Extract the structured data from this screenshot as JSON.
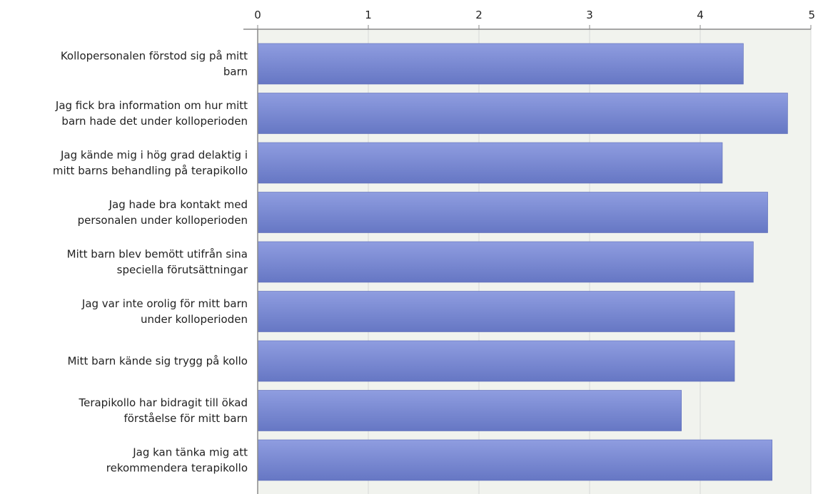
{
  "chart_data": {
    "type": "bar",
    "orientation": "horizontal",
    "title": "",
    "xlabel": "",
    "ylabel": "",
    "xlim": [
      0,
      5
    ],
    "ticks": [
      "0",
      "1",
      "2",
      "3",
      "4",
      "5"
    ],
    "tick_values": [
      0,
      1,
      2,
      3,
      4,
      5
    ],
    "grid": true,
    "legend": "none",
    "categories": [
      [
        "Kollopersonalen förstod sig på mitt",
        "barn"
      ],
      [
        "Jag fick bra information om hur mitt",
        "barn hade det under kolloperioden"
      ],
      [
        "Jag kände mig i hög grad delaktig i",
        "mitt barns behandling på terapikollo"
      ],
      [
        "Jag hade bra kontakt med",
        "personalen under kolloperioden"
      ],
      [
        "Mitt barn blev bemött utifrån sina",
        "speciella förutsättningar"
      ],
      [
        "Jag var inte orolig för mitt barn",
        "under kolloperioden"
      ],
      [
        "Mitt barn kände sig trygg på kollo"
      ],
      [
        "Terapikollo har bidragit till ökad",
        "förståelse för mitt barn"
      ],
      [
        "Jag kan tänka mig att",
        "rekommendera terapikollo"
      ]
    ],
    "values": [
      4.39,
      4.79,
      4.2,
      4.61,
      4.48,
      4.31,
      4.31,
      3.83,
      4.65
    ],
    "colors": {
      "bar": "#7b8cd6",
      "bar_top": "#8f9de0",
      "bar_bottom": "#6677c4",
      "plot_background": "#f1f3ee",
      "grid": "#d8d8d8",
      "axis": "#8a8a8a"
    }
  }
}
